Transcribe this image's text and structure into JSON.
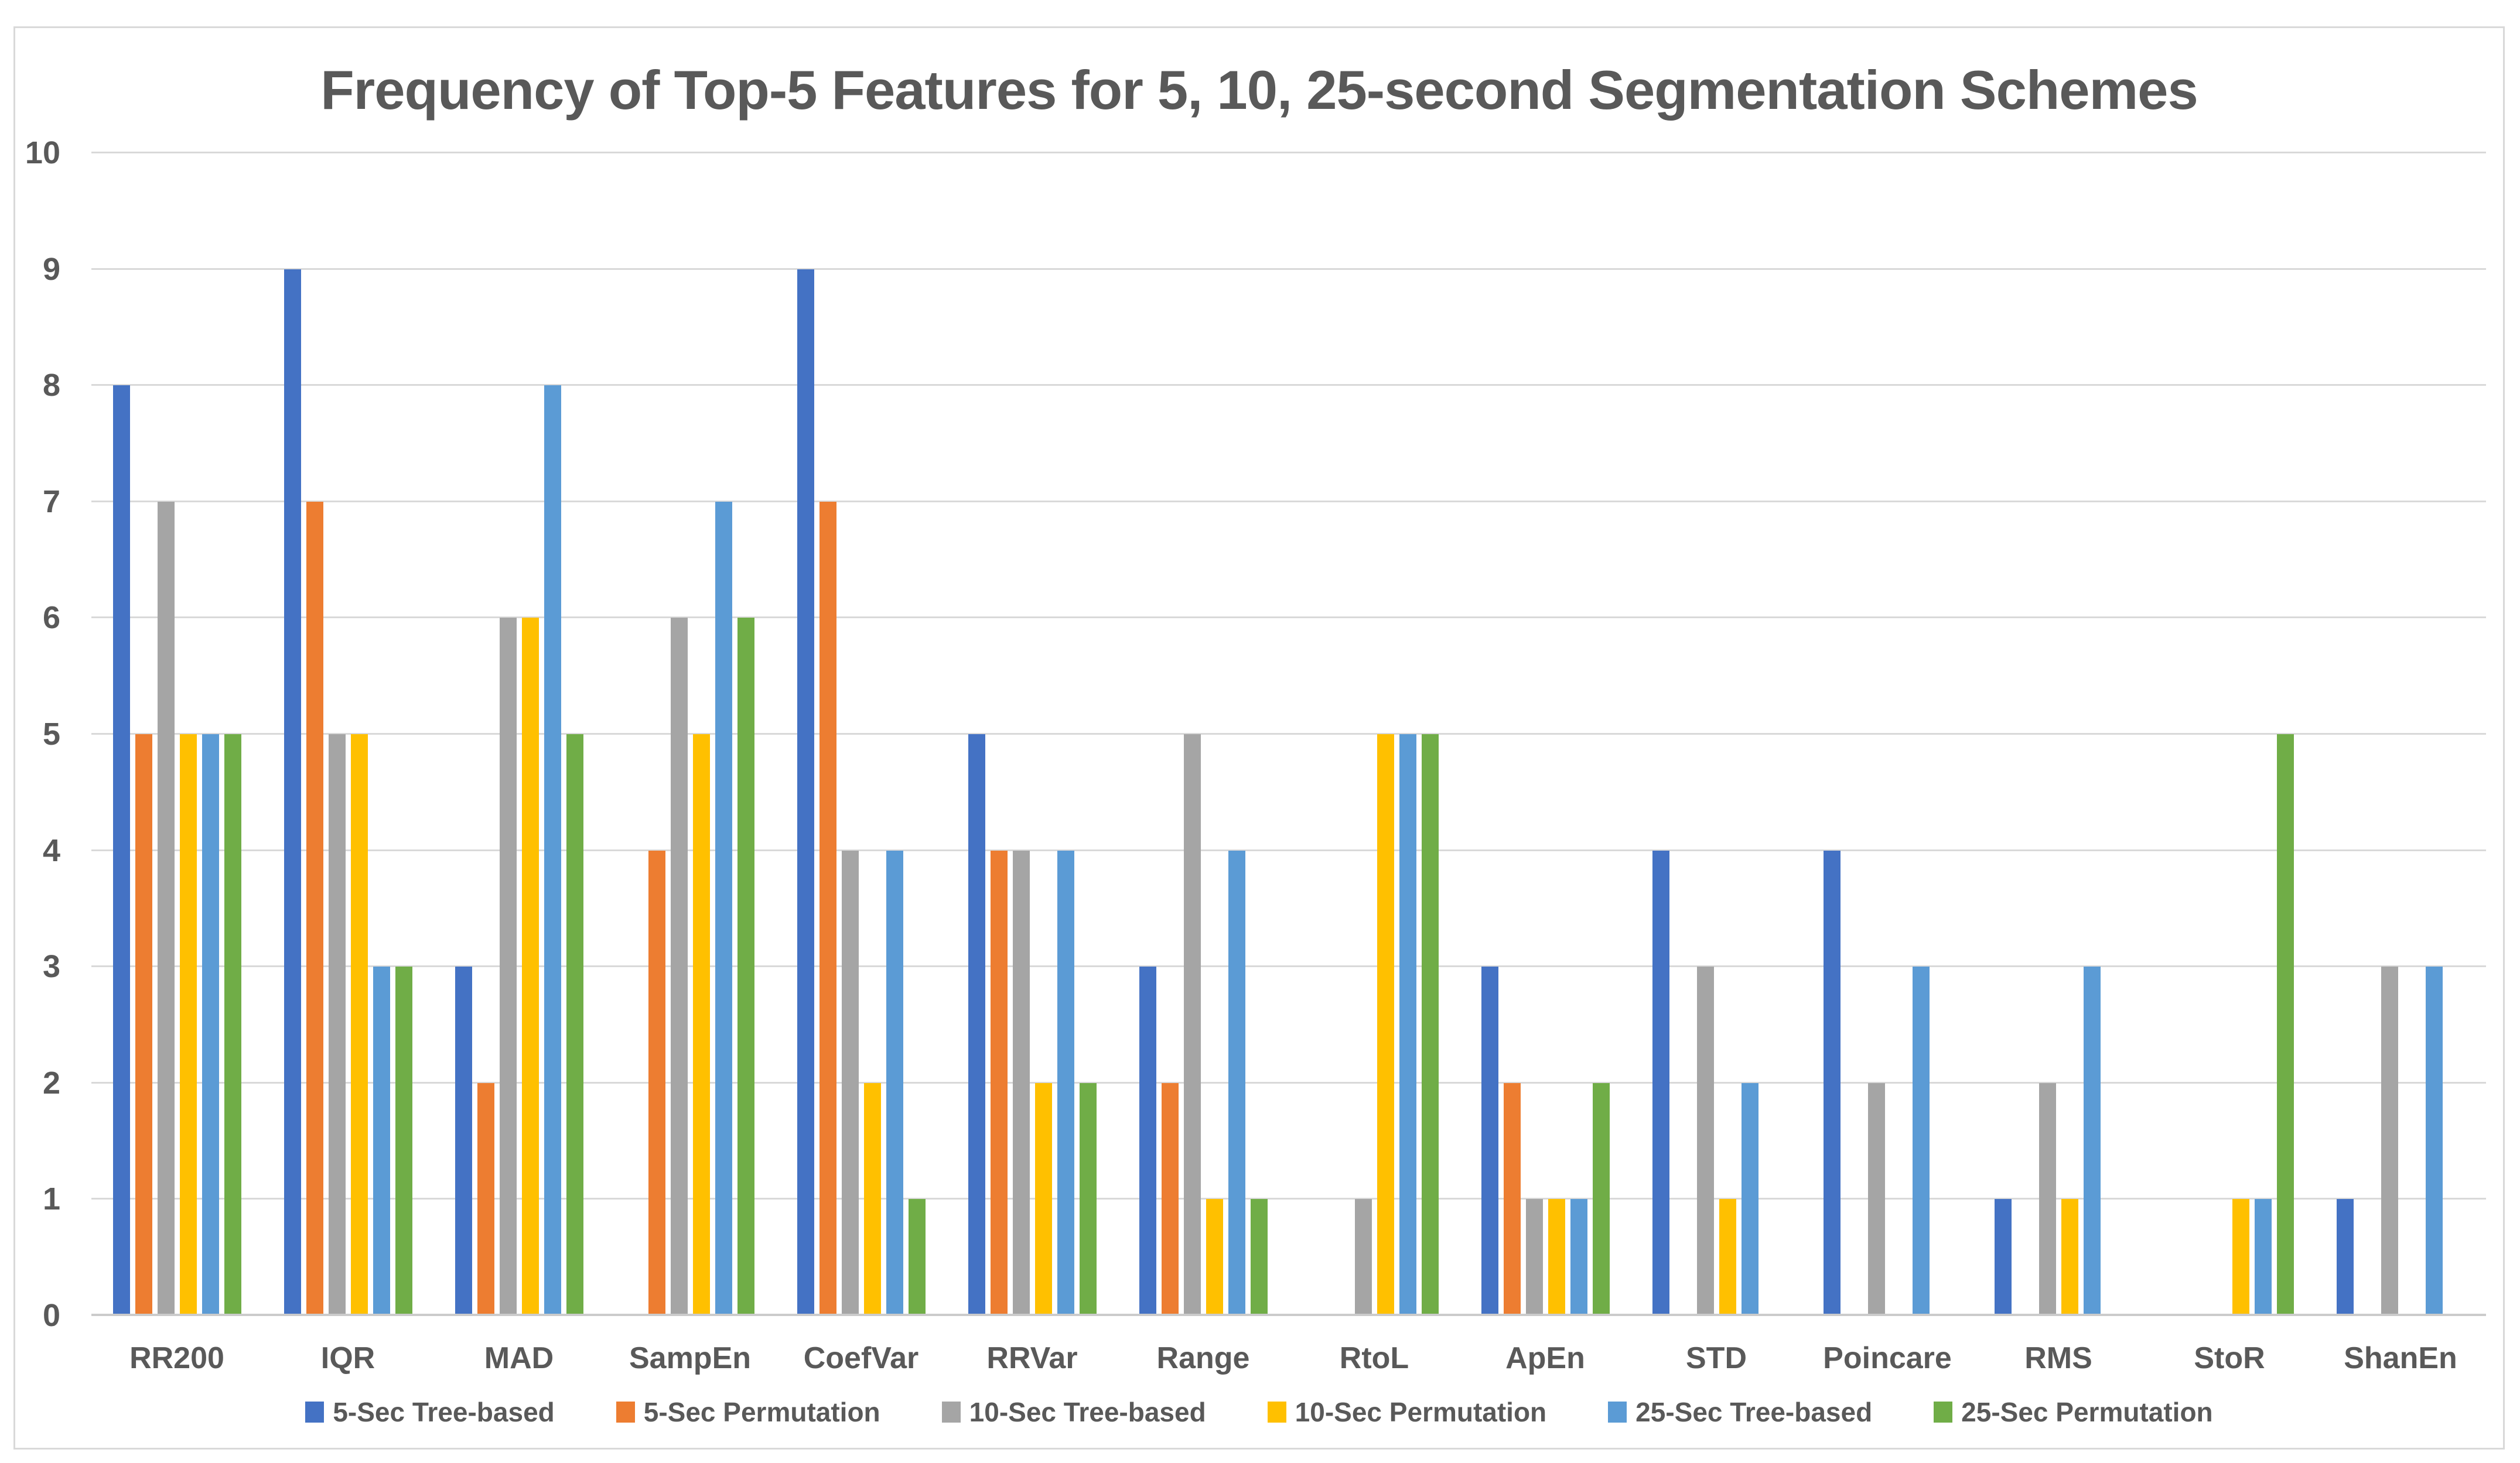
{
  "page": {
    "background": "#FFFFFF",
    "frame_border_color": "#D9D9D9"
  },
  "chart_data": {
    "type": "bar",
    "title": "Frequency of Top-5 Features for 5, 10, 25-second Segmentation Schemes",
    "title_color": "#595959",
    "axis_text_color": "#595959",
    "gridline_color": "#D9D9D9",
    "grid": true,
    "legend_position": "bottom",
    "xlabel": "",
    "ylabel": "",
    "ylim": [
      0,
      10
    ],
    "y_ticks": [
      0,
      1,
      2,
      3,
      4,
      5,
      6,
      7,
      8,
      9,
      10
    ],
    "categories": [
      "RR200",
      "IQR",
      "MAD",
      "SampEn",
      "CoefVar",
      "RRVar",
      "Range",
      "RtoL",
      "ApEn",
      "STD",
      "Poincare",
      "RMS",
      "StoR",
      "ShanEn"
    ],
    "series": [
      {
        "name": "5-Sec Tree-based",
        "color": "#4472C4",
        "values": [
          8,
          9,
          3,
          0,
          9,
          5,
          3,
          0,
          3,
          4,
          4,
          1,
          0,
          1
        ]
      },
      {
        "name": "5-Sec Permutation",
        "color": "#ED7D31",
        "values": [
          5,
          7,
          2,
          4,
          7,
          4,
          2,
          0,
          2,
          0,
          0,
          0,
          0,
          0
        ]
      },
      {
        "name": "10-Sec Tree-based",
        "color": "#A5A5A5",
        "values": [
          7,
          5,
          6,
          6,
          4,
          4,
          5,
          1,
          1,
          3,
          2,
          2,
          0,
          3
        ]
      },
      {
        "name": "10-Sec Permutation",
        "color": "#FFC000",
        "values": [
          5,
          5,
          6,
          5,
          2,
          2,
          1,
          5,
          1,
          1,
          0,
          1,
          1,
          0
        ]
      },
      {
        "name": "25-Sec Tree-based",
        "color": "#5B9BD5",
        "values": [
          5,
          3,
          8,
          7,
          4,
          4,
          4,
          5,
          1,
          2,
          3,
          3,
          1,
          3
        ]
      },
      {
        "name": "25-Sec Permutation",
        "color": "#70AD47",
        "values": [
          5,
          3,
          5,
          6,
          1,
          2,
          1,
          5,
          2,
          0,
          0,
          0,
          5,
          0
        ]
      }
    ]
  }
}
